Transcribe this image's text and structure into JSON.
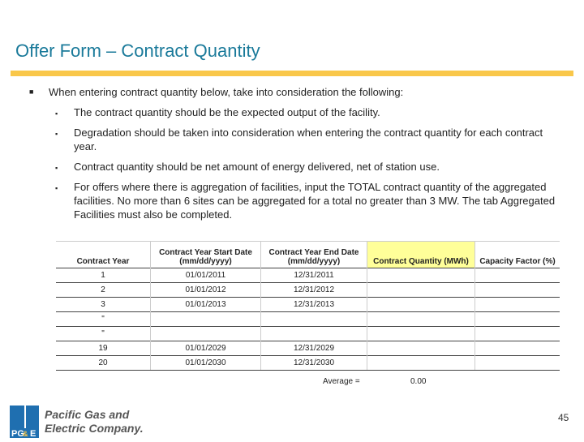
{
  "title": "Offer Form – Contract Quantity",
  "bullet": "When entering contract quantity below, take into consideration the following:",
  "sub": [
    "The contract quantity should be the expected output of the facility.",
    "Degradation should be taken into consideration when entering the contract quantity for each contract year.",
    "Contract quantity should be net amount of energy delivered, net of station use.",
    "For offers where there is aggregation of facilities, input the TOTAL contract quantity of the aggregated facilities.  No more than 6 sites can be aggregated for a total no greater than 3 MW.  The tab Aggregated Facilities must also be completed."
  ],
  "table": {
    "headers": [
      "Contract Year",
      "Contract Year Start Date (mm/dd/yyyy)",
      "Contract Year End Date (mm/dd/yyyy)",
      "Contract Quantity (MWh)",
      "Capacity Factor (%)"
    ],
    "rows": [
      [
        "1",
        "01/01/2011",
        "12/31/2011",
        "",
        ""
      ],
      [
        "2",
        "01/01/2012",
        "12/31/2012",
        "",
        ""
      ],
      [
        "3",
        "01/01/2013",
        "12/31/2013",
        "",
        ""
      ],
      [
        "\"",
        "",
        "",
        "",
        ""
      ],
      [
        "\"",
        "",
        "",
        "",
        ""
      ],
      [
        "19",
        "01/01/2029",
        "12/31/2029",
        "",
        ""
      ],
      [
        "20",
        "01/01/2030",
        "12/31/2030",
        "",
        ""
      ]
    ]
  },
  "average_label": "Average =",
  "average_value": "0.00",
  "logo": {
    "mark": "PG&E",
    "line1": "Pacific Gas and",
    "line2": "Electric Company."
  },
  "page_number": "45",
  "colors": {
    "title": "#1a7a9a",
    "accent_bar": "#f9c74a",
    "highlight": "#ffff99"
  }
}
